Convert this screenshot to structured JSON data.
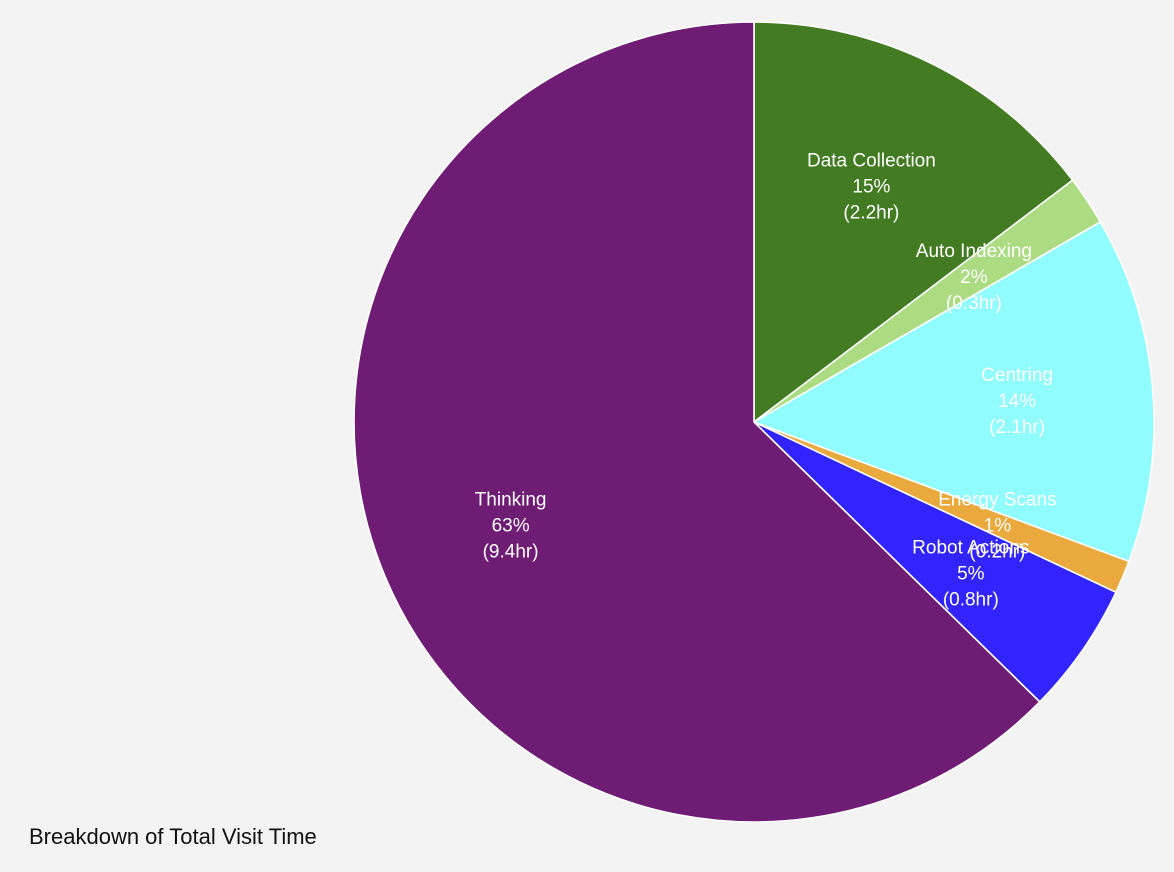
{
  "chart_data": {
    "type": "pie",
    "caption": "Breakdown of Total Visit Time",
    "slices": [
      {
        "name": "Data Collection",
        "percent": "15%",
        "duration": "(2.2hr)",
        "hours": 2.2,
        "color": "#437b22"
      },
      {
        "name": "Auto Indexing",
        "percent": "2%",
        "duration": "(0.3hr)",
        "hours": 0.3,
        "color": "#acdc82"
      },
      {
        "name": "Centring",
        "percent": "14%",
        "duration": "(2.1hr)",
        "hours": 2.1,
        "color": "#91fcfe"
      },
      {
        "name": "Energy Scans",
        "percent": "1%",
        "duration": "(0.2hr)",
        "hours": 0.2,
        "color": "#e9a93c"
      },
      {
        "name": "Robot Actions",
        "percent": "5%",
        "duration": "(0.8hr)",
        "hours": 0.8,
        "color": "#3224fe"
      },
      {
        "name": "Thinking",
        "percent": "63%",
        "duration": "(9.4hr)",
        "hours": 9.4,
        "color": "#6f1c75"
      }
    ],
    "start_angle": "top",
    "direction": "clockwise",
    "legend": "none"
  }
}
